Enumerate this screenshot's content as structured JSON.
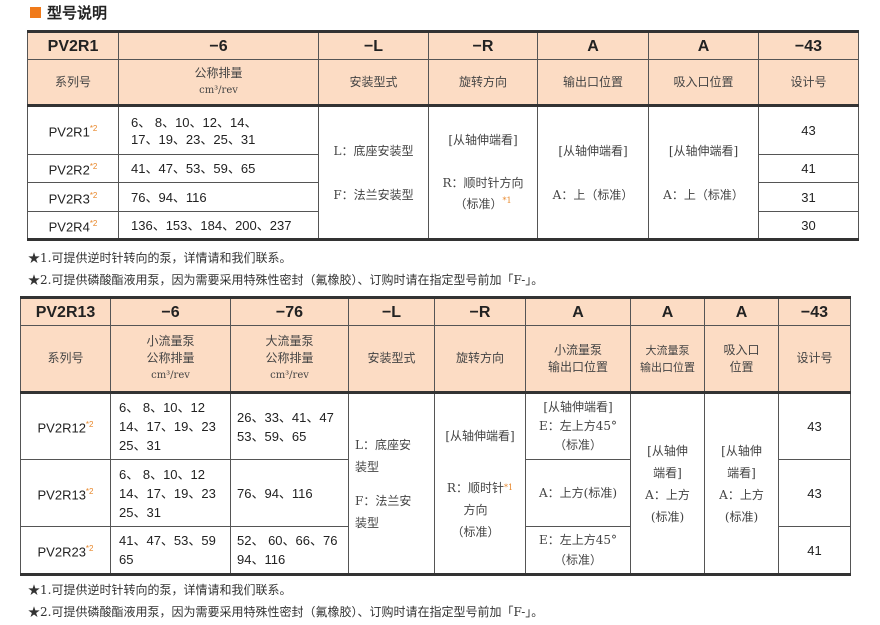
{
  "section_title": "型号说明",
  "colors": {
    "accent": "#f07a1a",
    "header_bg": "#fcdcc4",
    "star": "#e8872a"
  },
  "table1": {
    "code_row": [
      "PV2R1",
      "−6",
      "−L",
      "−R",
      "A",
      "A",
      "−43"
    ],
    "label_row": [
      "系列号",
      "公称排量",
      "安装型式",
      "旋转方向",
      "输出口位置",
      "吸入口位置",
      "设计号"
    ],
    "unit": "cm³/rev",
    "rows": [
      {
        "series": "PV2R1",
        "star": "*2",
        "disp": "6、 8、10、12、14、\n17、19、23、25、31",
        "design": "43"
      },
      {
        "series": "PV2R2",
        "star": "*2",
        "disp": "41、47、53、59、65",
        "design": "41"
      },
      {
        "series": "PV2R3",
        "star": "*2",
        "disp": "76、94、116",
        "design": "31"
      },
      {
        "series": "PV2R4",
        "star": "*2",
        "disp": "136、153、184、200、237",
        "design": "30"
      }
    ],
    "mount_l": "L：底座安装型",
    "mount_f": "F：法兰安装型",
    "view": "[从轴伸端看]",
    "rot": "R：顺时针方向",
    "rot_std": "（标准）",
    "rot_star": "*1",
    "out": "A：上（标准）",
    "in": "A：上（标准）"
  },
  "notes1": [
    "★1.可提供逆时针转向的泵，详情请和我们联系。",
    "★2.可提供磷酸酯液用泵，因为需要采用特殊性密封（氟橡胶）、订购时请在指定型号前加「F-」。"
  ],
  "table2": {
    "code_row": [
      "PV2R13",
      "−6",
      "−76",
      "−L",
      "−R",
      "A",
      "A",
      "A",
      "−43"
    ],
    "label_row": [
      "系列号",
      "小流量泵\n公称排量",
      "大流量泵\n公称排量",
      "安装型式",
      "旋转方向",
      "小流量泵\n输出口位置",
      "大流量泵\n输出口位置",
      "吸入口\n位置",
      "设计号"
    ],
    "unit": "cm³/rev",
    "rows": [
      {
        "series": "PV2R12",
        "star": "*2",
        "small": "6、 8、10、12\n14、17、19、23\n25、31",
        "large": "26、33、41、47\n53、59、65",
        "out_small": "[从轴伸端看]\nE：左上方45°\n（标准）",
        "design": "43"
      },
      {
        "series": "PV2R13",
        "star": "*2",
        "small": "6、 8、10、12\n14、17、19、23\n25、31",
        "large": "76、94、116",
        "out_small": "A：上方(标准)",
        "design": "43"
      },
      {
        "series": "PV2R23",
        "star": "*2",
        "small": "41、47、53、59\n65",
        "large": "52、 60、66、76\n94、116",
        "out_small": "E：左上方45°\n（标准）",
        "design": "41"
      }
    ],
    "mount_l": "L：底座安\n装型",
    "mount_f": "F：法兰安\n装型",
    "view": "[从轴伸端看]",
    "rot": "R：顺时针\n方向\n（标准）",
    "rot_star": "*1",
    "out_large": "[从轴伸\n端看]\nA：上方\n(标准)",
    "in": "[从轴伸\n端看]\nA：上方\n(标准)"
  },
  "notes2": [
    "★1.可提供逆时针转向的泵，详情请和我们联系。",
    "★2.可提供磷酸酯液用泵，因为需要采用特殊性密封（氟橡胶）、订购时请在指定型号前加「F-」。"
  ]
}
